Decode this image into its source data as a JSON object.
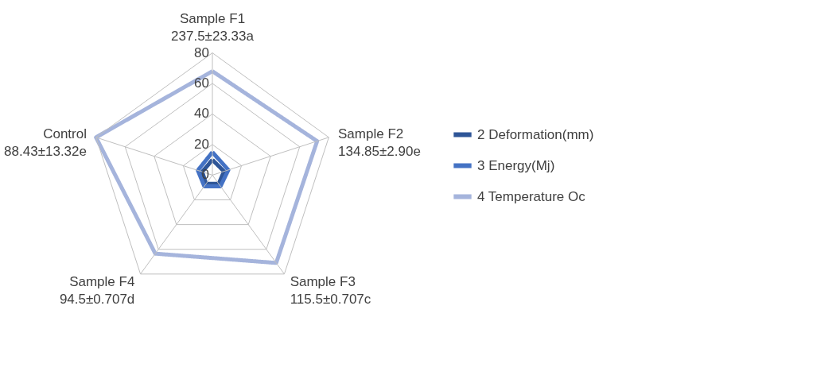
{
  "chart_data": {
    "type": "radar",
    "categories": [
      "Sample F1\n237.5±23.33a",
      "Sample F2\n134.85±2.90e",
      "Sample F3\n115.5±0.707c",
      "Sample F4\n94.5±0.707d",
      "Control\n88.43±13.32e"
    ],
    "series": [
      {
        "name": "2 Deformation(mm)",
        "color": "#2e5597",
        "values": [
          10,
          8,
          7,
          7,
          7
        ]
      },
      {
        "name": "3 Energy(Mj)",
        "color": "#4472c4",
        "values": [
          15,
          11,
          9,
          9,
          10
        ]
      },
      {
        "name": "4 Temperature Oc",
        "color": "#a5b4dc",
        "values": [
          68,
          72,
          71,
          63.5,
          80
        ]
      }
    ],
    "ylim": [
      0,
      80
    ],
    "yticks": [
      0,
      20,
      40,
      60,
      80
    ],
    "grid": true,
    "legend": "right",
    "line_style": "solid",
    "marker": "none"
  }
}
